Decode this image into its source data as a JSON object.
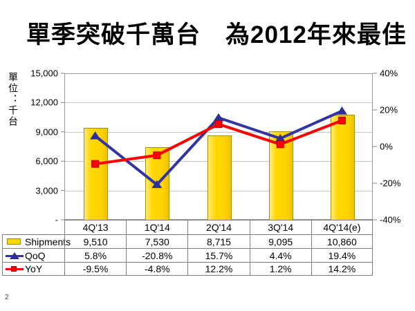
{
  "title": "單季突破千萬台　為2012年來最佳",
  "page_number": "2",
  "chart_data": {
    "type": "bar",
    "subtype": "combo-bar-lines",
    "title": "單季突破千萬台 為2012年來最佳",
    "categories": [
      "4Q'13",
      "1Q'14",
      "2Q'14",
      "3Q'14",
      "4Q'14(e)"
    ],
    "series": [
      {
        "name": "Shipments",
        "type": "bar",
        "axis": "left",
        "color": "#ffd700",
        "values": [
          9510,
          7530,
          8715,
          9095,
          10860
        ]
      },
      {
        "name": "QoQ",
        "type": "line",
        "axis": "right",
        "marker": "triangle",
        "color": "#3333a3",
        "values": [
          5.8,
          -20.8,
          15.7,
          4.4,
          19.4
        ]
      },
      {
        "name": "YoY",
        "type": "line",
        "axis": "right",
        "marker": "square",
        "color": "#ff0000",
        "values": [
          -9.5,
          -4.8,
          12.2,
          1.2,
          14.2
        ]
      }
    ],
    "left_axis": {
      "title": "單位：千台",
      "min": 0,
      "max": 15000,
      "step": 3000,
      "tick_labels": [
        "15,000",
        "12,000",
        "9,000",
        "6,000",
        "3,000",
        "-"
      ]
    },
    "right_axis": {
      "min": -40,
      "max": 40,
      "step": 20,
      "tick_labels": [
        "40%",
        "20%",
        "0%",
        "-20%",
        "-40%"
      ]
    },
    "grid": "horizontal",
    "legend_position": "table-left",
    "table": {
      "rows": [
        {
          "label": "Shipments",
          "key": "bar",
          "cells": [
            "9,510",
            "7,530",
            "8,715",
            "9,095",
            "10,860"
          ]
        },
        {
          "label": "QoQ",
          "key": "triangle",
          "cells": [
            "5.8%",
            "-20.8%",
            "15.7%",
            "4.4%",
            "19.4%"
          ]
        },
        {
          "label": "YoY",
          "key": "square",
          "cells": [
            "-9.5%",
            "-4.8%",
            "12.2%",
            "1.2%",
            "14.2%"
          ]
        }
      ]
    }
  },
  "colors": {
    "bar_fill": "#ffd700",
    "bar_border": "#a38f00",
    "qoq_line": "#3333a3",
    "qoq_marker": "#2e2e96",
    "yoy_line": "#ff0000",
    "yoy_marker": "#ff0000",
    "gridline": "#c4c4c4",
    "table_border": "#7f7f7f",
    "text": "#000000"
  }
}
